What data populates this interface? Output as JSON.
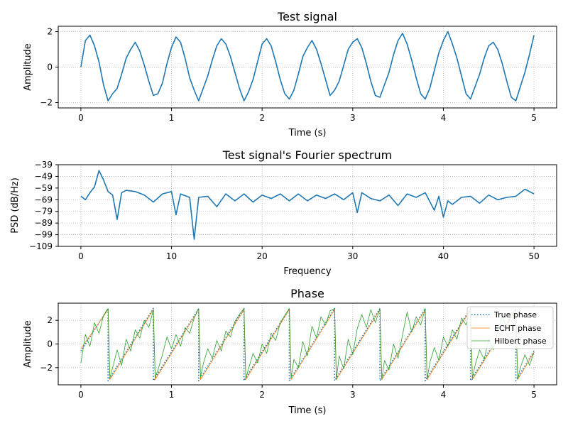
{
  "chart_data": [
    {
      "type": "line",
      "title": "Test signal",
      "xlabel": "Time (s)",
      "ylabel": "Amplitude",
      "xlim": [
        -0.25,
        5.25
      ],
      "ylim": [
        -2.3,
        2.3
      ],
      "xticks": [
        0,
        1,
        2,
        3,
        4,
        5
      ],
      "yticks": [
        -2,
        0,
        2
      ],
      "grid": true,
      "series": [
        {
          "color": "#1f77b4",
          "x": [
            0,
            0.05,
            0.1,
            0.15,
            0.2,
            0.25,
            0.3,
            0.35,
            0.4,
            0.45,
            0.5,
            0.55,
            0.6,
            0.65,
            0.7,
            0.75,
            0.8,
            0.85,
            0.9,
            0.95,
            1,
            1.05,
            1.1,
            1.15,
            1.2,
            1.25,
            1.3,
            1.35,
            1.4,
            1.45,
            1.5,
            1.55,
            1.6,
            1.65,
            1.7,
            1.75,
            1.8,
            1.85,
            1.9,
            1.95,
            2,
            2.05,
            2.1,
            2.15,
            2.2,
            2.25,
            2.3,
            2.35,
            2.4,
            2.45,
            2.5,
            2.55,
            2.6,
            2.65,
            2.7,
            2.75,
            2.8,
            2.85,
            2.9,
            2.95,
            3,
            3.05,
            3.1,
            3.15,
            3.2,
            3.25,
            3.3,
            3.35,
            3.4,
            3.45,
            3.5,
            3.55,
            3.6,
            3.65,
            3.7,
            3.75,
            3.8,
            3.85,
            3.9,
            3.95,
            4,
            4.05,
            4.1,
            4.15,
            4.2,
            4.25,
            4.3,
            4.35,
            4.4,
            4.45,
            4.5,
            4.55,
            4.6,
            4.65,
            4.7,
            4.75,
            4.8,
            4.85,
            4.9,
            4.95,
            5
          ],
          "y": [
            0.0,
            1.5,
            1.8,
            1.2,
            0.3,
            -1.0,
            -1.9,
            -1.5,
            -1.2,
            -0.4,
            0.5,
            1.0,
            1.4,
            0.9,
            0.1,
            -0.8,
            -1.6,
            -1.5,
            -0.9,
            0.2,
            1.1,
            1.7,
            1.4,
            0.5,
            -0.6,
            -1.3,
            -1.9,
            -1.2,
            -0.5,
            0.4,
            1.2,
            1.6,
            1.3,
            0.6,
            -0.3,
            -1.2,
            -1.9,
            -1.4,
            -0.7,
            0.3,
            1.3,
            1.6,
            1.2,
            0.3,
            -0.7,
            -1.5,
            -1.8,
            -1.3,
            -0.4,
            0.6,
            1.1,
            1.5,
            1.0,
            0.2,
            -0.7,
            -1.6,
            -1.3,
            -0.8,
            0.1,
            1.0,
            1.4,
            1.6,
            1.1,
            0.2,
            -0.8,
            -1.6,
            -1.7,
            -1.0,
            -0.3,
            0.7,
            1.5,
            1.9,
            1.3,
            0.4,
            -0.6,
            -1.5,
            -1.8,
            -1.2,
            -0.2,
            0.8,
            1.5,
            2.0,
            1.3,
            0.5,
            -0.5,
            -1.5,
            -1.8,
            -1.1,
            -0.4,
            0.5,
            1.2,
            1.4,
            1.0,
            0.2,
            -0.8,
            -1.7,
            -1.9,
            -1.1,
            -0.3,
            0.7,
            1.8
          ]
        }
      ]
    },
    {
      "type": "line",
      "title": "Test signal's Fourier spectrum",
      "xlabel": "Frequency",
      "ylabel": "PSD (dB/Hz)",
      "xlim": [
        -2.5,
        52.5
      ],
      "ylim": [
        -109,
        -39
      ],
      "xticks": [
        0,
        10,
        20,
        30,
        40,
        50
      ],
      "yticks": [
        -39,
        -49,
        -59,
        -69,
        -79,
        -89,
        -99,
        -109
      ],
      "grid": true,
      "series": [
        {
          "color": "#1f77b4",
          "x": [
            0,
            0.5,
            1,
            1.5,
            2,
            2.5,
            3,
            3.5,
            4,
            4.5,
            5,
            6,
            7,
            8,
            9,
            10,
            10.5,
            11,
            12,
            12.5,
            13,
            14,
            15,
            16,
            17,
            18,
            19,
            20,
            21,
            22,
            23,
            24,
            25,
            26,
            27,
            28,
            29,
            30,
            30.5,
            31,
            32,
            33,
            34,
            35,
            36,
            37,
            38,
            39,
            39.5,
            40,
            40.5,
            41,
            42,
            43,
            44,
            45,
            46,
            47,
            48,
            49,
            50
          ],
          "y": [
            -66,
            -69,
            -63,
            -58,
            -44,
            -52,
            -62,
            -65,
            -86,
            -63,
            -61,
            -62,
            -65,
            -71,
            -64,
            -62,
            -82,
            -64,
            -67,
            -103,
            -67,
            -66,
            -75,
            -64,
            -70,
            -64,
            -71,
            -65,
            -68,
            -64,
            -70,
            -64,
            -70,
            -65,
            -68,
            -64,
            -69,
            -63,
            -80,
            -63,
            -68,
            -70,
            -65,
            -74,
            -64,
            -67,
            -63,
            -78,
            -66,
            -84,
            -70,
            -73,
            -67,
            -66,
            -72,
            -65,
            -69,
            -67,
            -66,
            -60,
            -64
          ]
        }
      ]
    },
    {
      "type": "line",
      "title": "Phase",
      "xlabel": "Time (s)",
      "ylabel": "Amplitude",
      "xlim": [
        -0.25,
        5.25
      ],
      "ylim": [
        -3.45,
        3.45
      ],
      "xticks": [
        0,
        1,
        2,
        3,
        4,
        5
      ],
      "yticks": [
        -2,
        0,
        2
      ],
      "grid": true,
      "legend": "top-right",
      "series": [
        {
          "name": "True phase",
          "color": "#1f77b4",
          "style": "dotted",
          "x": [
            0,
            0.3,
            0.3,
            0.8,
            0.8,
            1.3,
            1.3,
            1.8,
            1.8,
            2.3,
            2.3,
            2.8,
            2.8,
            3.3,
            3.3,
            3.8,
            3.8,
            4.3,
            4.3,
            4.8,
            4.8,
            5.0
          ],
          "y": [
            -0.6,
            3.0,
            -3.1,
            3.0,
            -3.1,
            3.0,
            -3.1,
            3.0,
            -3.1,
            3.0,
            -3.1,
            3.0,
            -3.1,
            3.0,
            -3.1,
            3.0,
            -3.1,
            3.0,
            -3.1,
            3.0,
            -3.1,
            -0.6
          ]
        },
        {
          "name": "ECHT phase",
          "color": "#ff7f0e",
          "style": "solid-thin",
          "x": [
            0,
            0.3,
            0.32,
            0.8,
            0.82,
            1.3,
            1.32,
            1.8,
            1.82,
            2.3,
            2.32,
            2.8,
            2.82,
            3.3,
            3.32,
            3.8,
            3.82,
            4.3,
            4.32,
            4.8,
            4.82,
            5.0
          ],
          "y": [
            -0.4,
            2.9,
            -3.0,
            2.9,
            -3.0,
            2.9,
            -3.0,
            2.9,
            -3.0,
            2.9,
            -3.0,
            2.9,
            -3.0,
            2.9,
            -3.0,
            2.9,
            -3.0,
            2.9,
            -3.0,
            2.9,
            -3.0,
            -0.7
          ]
        },
        {
          "name": "Hilbert phase",
          "color": "#2ca02c",
          "style": "solid-thin",
          "x": [
            0,
            0.05,
            0.1,
            0.15,
            0.2,
            0.25,
            0.3,
            0.32,
            0.35,
            0.4,
            0.45,
            0.5,
            0.55,
            0.6,
            0.65,
            0.7,
            0.75,
            0.8,
            0.82,
            0.85,
            0.9,
            0.95,
            1.0,
            1.05,
            1.1,
            1.15,
            1.2,
            1.25,
            1.3,
            1.32,
            1.35,
            1.4,
            1.45,
            1.5,
            1.55,
            1.6,
            1.65,
            1.7,
            1.75,
            1.8,
            1.82,
            1.85,
            1.9,
            1.95,
            2.0,
            2.05,
            2.1,
            2.15,
            2.2,
            2.25,
            2.3,
            2.32,
            2.35,
            2.4,
            2.45,
            2.5,
            2.55,
            2.6,
            2.65,
            2.7,
            2.75,
            2.8,
            2.82,
            2.85,
            2.9,
            2.95,
            3.0,
            3.05,
            3.1,
            3.15,
            3.2,
            3.25,
            3.3,
            3.32,
            3.35,
            3.4,
            3.45,
            3.5,
            3.55,
            3.6,
            3.65,
            3.7,
            3.75,
            3.8,
            3.82,
            3.85,
            3.9,
            3.95,
            4.0,
            4.05,
            4.1,
            4.15,
            4.2,
            4.25,
            4.3,
            4.32,
            4.35,
            4.4,
            4.45,
            4.5,
            4.55,
            4.6,
            4.65,
            4.7,
            4.75,
            4.8,
            4.82,
            4.85,
            4.9,
            4.95,
            5.0
          ],
          "y": [
            -1.6,
            0.8,
            -0.2,
            1.8,
            0.9,
            2.4,
            3.0,
            -2.9,
            -2.0,
            -0.5,
            -1.8,
            0.4,
            -0.6,
            1.2,
            0.5,
            2.0,
            1.4,
            2.9,
            -2.8,
            -2.2,
            -0.9,
            0.6,
            -0.4,
            0.8,
            -0.2,
            1.4,
            0.9,
            2.2,
            3.0,
            -2.8,
            -1.7,
            -0.4,
            -1.2,
            0.3,
            -0.6,
            1.1,
            0.6,
            1.9,
            2.5,
            3.0,
            -2.9,
            -2.1,
            -0.8,
            -1.6,
            0.0,
            -0.8,
            0.9,
            0.3,
            1.8,
            2.4,
            3.0,
            -2.9,
            -1.3,
            -2.0,
            0.2,
            -1.0,
            1.5,
            0.5,
            2.3,
            1.6,
            2.8,
            3.0,
            -3.0,
            -1.0,
            -2.1,
            0.4,
            -0.9,
            1.3,
            2.5,
            1.4,
            2.9,
            1.8,
            3.0,
            -3.0,
            -1.4,
            -2.2,
            0.0,
            -1.2,
            0.8,
            2.7,
            1.0,
            2.3,
            1.6,
            3.0,
            -3.0,
            -1.6,
            -0.3,
            -1.4,
            0.6,
            -0.2,
            1.2,
            0.4,
            2.2,
            1.6,
            3.0,
            -2.9,
            -1.8,
            -0.5,
            -1.3,
            0.4,
            -0.5,
            1.1,
            2.4,
            1.3,
            2.6,
            2.9,
            -3.0,
            -2.0,
            -0.9,
            -1.8,
            -0.7
          ]
        }
      ]
    }
  ]
}
